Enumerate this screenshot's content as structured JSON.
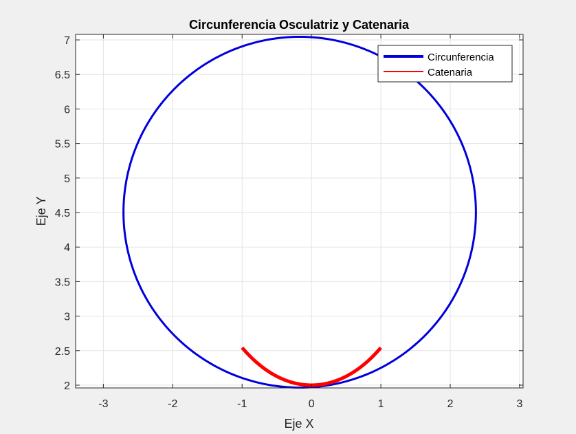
{
  "chart_data": {
    "type": "line",
    "title": "Circunferencia Osculatriz y Catenaria",
    "xlabel": "Eje X",
    "ylabel": "Eje Y",
    "xlim": [
      -3.4,
      3.05
    ],
    "ylim": [
      1.96,
      7.08
    ],
    "xticks": [
      -3,
      -2,
      -1,
      0,
      1,
      2,
      3
    ],
    "xtick_labels": [
      "-3",
      "-2",
      "-1",
      "0",
      "1",
      "2",
      "3"
    ],
    "yticks": [
      2,
      2.5,
      3,
      3.5,
      4,
      4.5,
      5,
      5.5,
      6,
      6.5,
      7
    ],
    "ytick_labels": [
      "2",
      "2.5",
      "3",
      "3.5",
      "4",
      "4.5",
      "5",
      "5.5",
      "6",
      "6.5",
      "7"
    ],
    "grid": true,
    "legend": {
      "location": "top-right"
    },
    "series": [
      {
        "name": "Circunferencia",
        "kind": "circle",
        "center": [
          -0.17,
          4.505
        ],
        "radius": 2.54,
        "color": "#0000dd"
      },
      {
        "name": "Catenaria",
        "kind": "function",
        "formula": "cosh(x)",
        "x_range": [
          -1,
          1
        ],
        "y_offset": 1,
        "color": "#ff0000"
      }
    ]
  }
}
